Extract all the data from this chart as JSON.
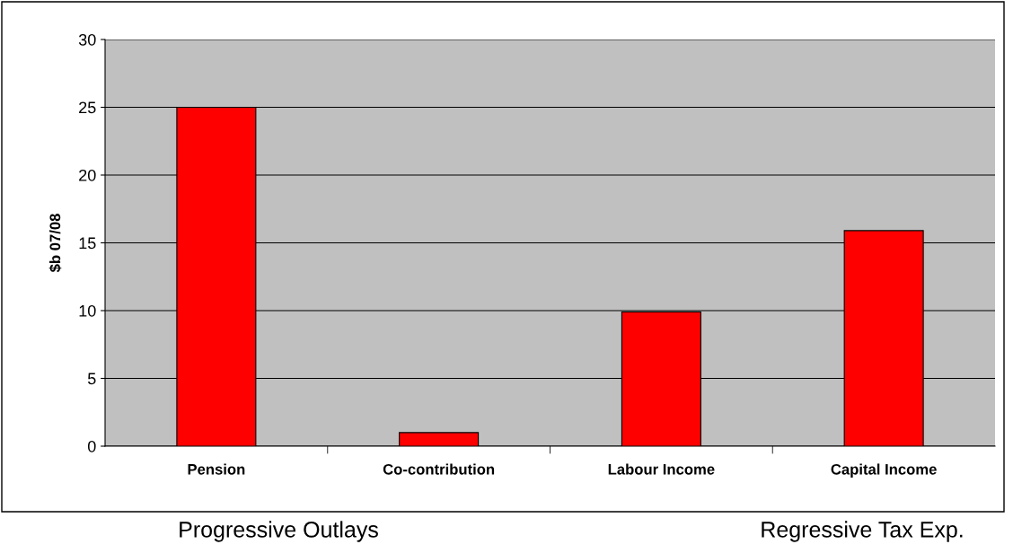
{
  "chart_data": {
    "type": "bar",
    "ylabel": "$b 07/08",
    "categories": [
      "Pension",
      "Co-contribution",
      "Labour Income",
      "Capital Income"
    ],
    "values": [
      25.0,
      1.0,
      9.9,
      15.9
    ],
    "color": "#ff0000",
    "ylim": [
      0,
      30
    ],
    "yticks": [
      0,
      5,
      10,
      15,
      20,
      25,
      30
    ],
    "grid": "y",
    "annotations": [
      "Progressive Outlays",
      "Regressive Tax Exp."
    ]
  }
}
